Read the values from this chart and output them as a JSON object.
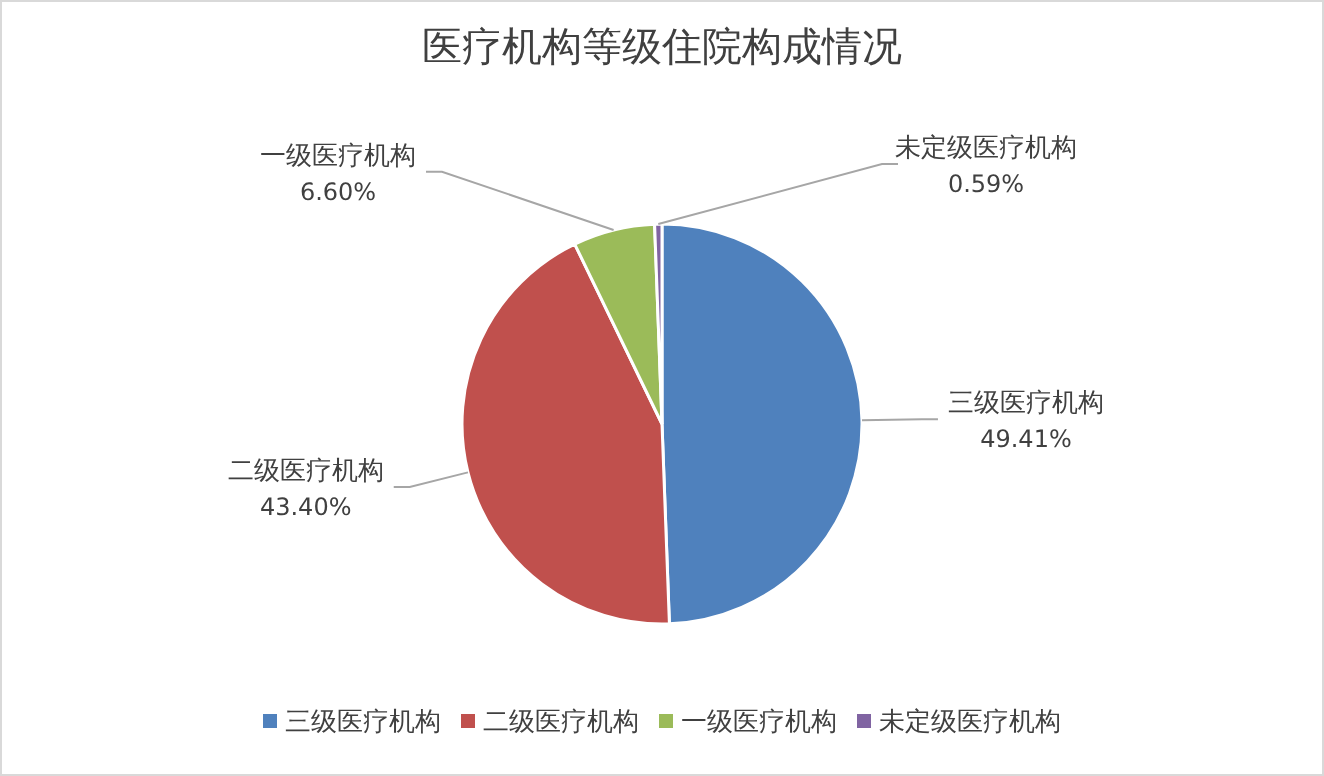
{
  "chart_data": {
    "type": "pie",
    "title": "医疗机构等级住院构成情况",
    "categories": [
      "三级医疗机构",
      "二级医疗机构",
      "一级医疗机构",
      "未定级医疗机构"
    ],
    "values": [
      49.41,
      43.4,
      6.6,
      0.59
    ],
    "colors": [
      "#4f81bd",
      "#c0504d",
      "#9bbb59",
      "#8064a2"
    ],
    "value_labels": [
      "49.41%",
      "43.40%",
      "6.60%",
      "0.59%"
    ],
    "legend": "bottom"
  }
}
